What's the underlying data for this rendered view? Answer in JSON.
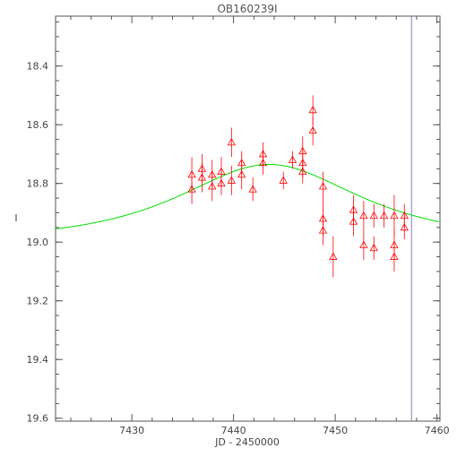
{
  "chart_data": {
    "type": "scatter",
    "title": "OB160239I",
    "xlabel": "JD - 2450000",
    "ylabel": "I",
    "xlim": [
      7422.5,
      7460.3
    ],
    "ylim": [
      19.61,
      18.23
    ],
    "y_inverted": true,
    "grid": false,
    "x_ticks": [
      7430,
      7440,
      7450,
      7460
    ],
    "y_ticks": [
      18.4,
      18.6,
      18.8,
      19.0,
      19.2,
      19.4,
      19.6
    ],
    "x_tick_labels": [
      "7430",
      "7440",
      "7450",
      "7460"
    ],
    "y_tick_labels": [
      "18.4",
      "18.6",
      "18.8",
      "19.0",
      "19.2",
      "19.4",
      "19.6"
    ],
    "vertical_line_x": 7457.5,
    "colors": {
      "points": "#ff0000",
      "model": "#00dd00",
      "vline": "#8080b0",
      "axes": "#555555"
    },
    "series": [
      {
        "type": "scatter_errorbar",
        "marker": "open-triangle",
        "points": [
          {
            "x": 7435.9,
            "y": 18.77,
            "err": 0.06
          },
          {
            "x": 7435.9,
            "y": 18.82,
            "err": 0.05
          },
          {
            "x": 7436.9,
            "y": 18.75,
            "err": 0.05
          },
          {
            "x": 7436.9,
            "y": 18.78,
            "err": 0.05
          },
          {
            "x": 7437.9,
            "y": 18.77,
            "err": 0.05
          },
          {
            "x": 7437.9,
            "y": 18.81,
            "err": 0.05
          },
          {
            "x": 7438.8,
            "y": 18.76,
            "err": 0.05
          },
          {
            "x": 7438.8,
            "y": 18.8,
            "err": 0.04
          },
          {
            "x": 7439.8,
            "y": 18.66,
            "err": 0.05
          },
          {
            "x": 7439.8,
            "y": 18.79,
            "err": 0.05
          },
          {
            "x": 7440.8,
            "y": 18.73,
            "err": 0.04
          },
          {
            "x": 7440.8,
            "y": 18.77,
            "err": 0.05
          },
          {
            "x": 7441.9,
            "y": 18.82,
            "err": 0.04
          },
          {
            "x": 7442.9,
            "y": 18.7,
            "err": 0.04
          },
          {
            "x": 7442.9,
            "y": 18.73,
            "err": 0.04
          },
          {
            "x": 7444.9,
            "y": 18.79,
            "err": 0.03
          },
          {
            "x": 7445.8,
            "y": 18.72,
            "err": 0.03
          },
          {
            "x": 7446.8,
            "y": 18.69,
            "err": 0.05
          },
          {
            "x": 7446.8,
            "y": 18.73,
            "err": 0.05
          },
          {
            "x": 7446.8,
            "y": 18.76,
            "err": 0.04
          },
          {
            "x": 7447.8,
            "y": 18.55,
            "err": 0.05
          },
          {
            "x": 7447.8,
            "y": 18.62,
            "err": 0.05
          },
          {
            "x": 7448.8,
            "y": 18.81,
            "err": 0.05
          },
          {
            "x": 7448.8,
            "y": 18.92,
            "err": 0.06
          },
          {
            "x": 7448.8,
            "y": 18.96,
            "err": 0.05
          },
          {
            "x": 7449.8,
            "y": 19.05,
            "err": 0.07
          },
          {
            "x": 7451.8,
            "y": 18.89,
            "err": 0.05
          },
          {
            "x": 7451.8,
            "y": 18.93,
            "err": 0.05
          },
          {
            "x": 7452.8,
            "y": 18.91,
            "err": 0.05
          },
          {
            "x": 7452.8,
            "y": 19.01,
            "err": 0.05
          },
          {
            "x": 7453.8,
            "y": 18.91,
            "err": 0.04
          },
          {
            "x": 7453.8,
            "y": 19.02,
            "err": 0.04
          },
          {
            "x": 7454.8,
            "y": 18.91,
            "err": 0.04
          },
          {
            "x": 7455.8,
            "y": 18.91,
            "err": 0.07
          },
          {
            "x": 7455.8,
            "y": 19.01,
            "err": 0.05
          },
          {
            "x": 7455.8,
            "y": 19.05,
            "err": 0.05
          },
          {
            "x": 7456.8,
            "y": 18.91,
            "err": 0.04
          },
          {
            "x": 7456.8,
            "y": 18.95,
            "err": 0.04
          }
        ]
      },
      {
        "type": "model_curve",
        "model": {
          "t0": 7443.5,
          "u0": 0.85,
          "tE": 12.0,
          "base_mag": 18.995,
          "blend_fs": 0.57
        }
      }
    ]
  }
}
